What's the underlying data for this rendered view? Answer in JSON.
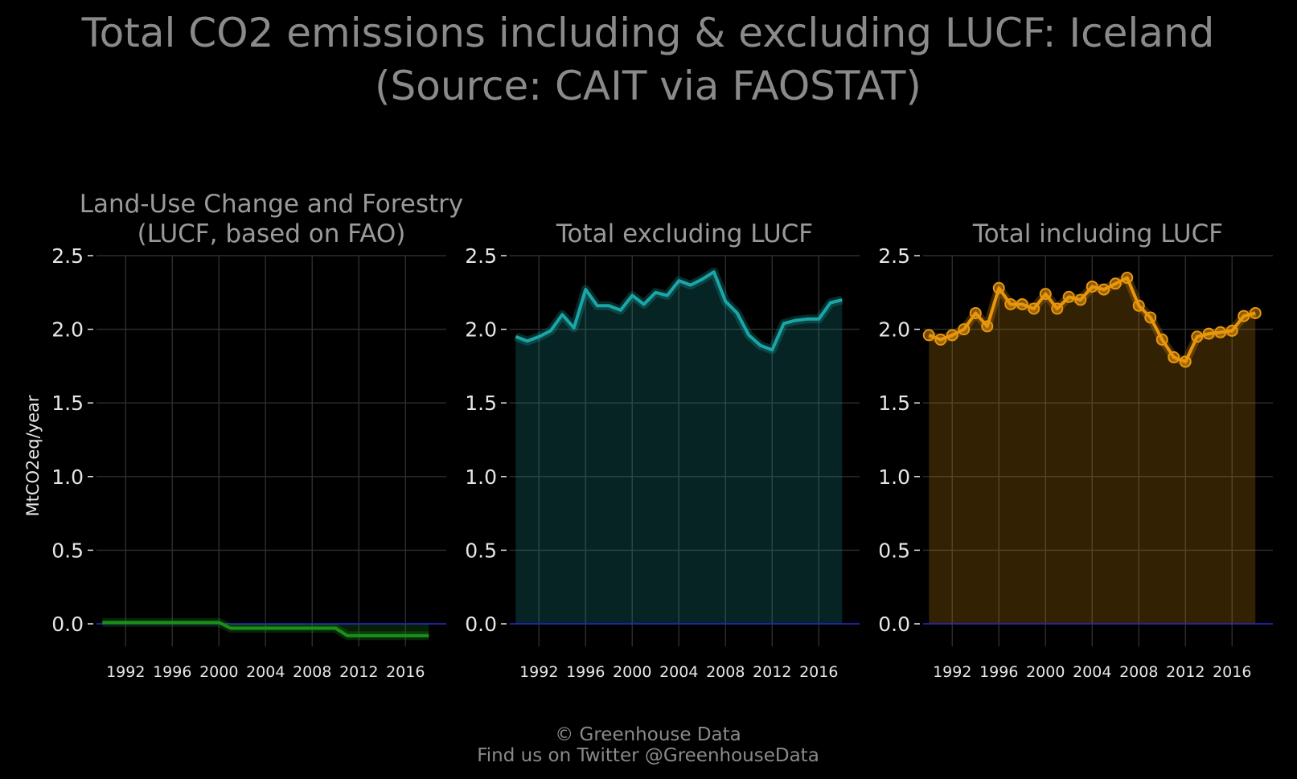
{
  "figure": {
    "title_line1": "Total CO2 emissions including & excluding LUCF: Iceland",
    "title_line2": "(Source: CAIT via FAOSTAT)",
    "credit_line1": "© Greenhouse Data",
    "credit_line2": "Find us on Twitter @GreenhouseData",
    "ylabel": "MtCO2eq/year",
    "background": "#000000",
    "grid_color": "#2e2e2e",
    "zero_line_color": "#2222cc"
  },
  "chart_data": [
    {
      "type": "area",
      "title_lines": [
        "Land-Use Change and Forestry",
        "(LUCF, based on FAO)"
      ],
      "color": "#1a8f1a",
      "marker": "none",
      "step": true,
      "ylim": [
        -0.2,
        2.5
      ],
      "xlim": [
        1989.5,
        2019.5
      ],
      "yticks": [
        "0.0",
        "0.5",
        "1.0",
        "1.5",
        "2.0",
        "2.5"
      ],
      "xticks": [
        "1992",
        "1996",
        "2000",
        "2004",
        "2008",
        "2012",
        "2016"
      ],
      "grid": true,
      "x": [
        1990,
        1991,
        1992,
        1993,
        1994,
        1995,
        1996,
        1997,
        1998,
        1999,
        2000,
        2001,
        2002,
        2003,
        2004,
        2005,
        2006,
        2007,
        2008,
        2009,
        2010,
        2011,
        2012,
        2013,
        2014,
        2015,
        2016,
        2017,
        2018
      ],
      "values": [
        0.01,
        0.01,
        0.01,
        0.01,
        0.01,
        0.01,
        0.01,
        0.01,
        0.01,
        0.01,
        0.01,
        -0.03,
        -0.03,
        -0.03,
        -0.03,
        -0.03,
        -0.03,
        -0.03,
        -0.03,
        -0.03,
        -0.03,
        -0.08,
        -0.08,
        -0.08,
        -0.08,
        -0.08,
        -0.08,
        -0.08,
        -0.08
      ]
    },
    {
      "type": "area",
      "title_lines": [
        "Total excluding LUCF"
      ],
      "color": "#1aa6a6",
      "marker": "none",
      "step": false,
      "ylim": [
        -0.2,
        2.5
      ],
      "xlim": [
        1989.5,
        2019.5
      ],
      "yticks": [
        "0.0",
        "0.5",
        "1.0",
        "1.5",
        "2.0",
        "2.5"
      ],
      "xticks": [
        "1992",
        "1996",
        "2000",
        "2004",
        "2008",
        "2012",
        "2016"
      ],
      "grid": true,
      "x": [
        1990,
        1991,
        1992,
        1993,
        1994,
        1995,
        1996,
        1997,
        1998,
        1999,
        2000,
        2001,
        2002,
        2003,
        2004,
        2005,
        2006,
        2007,
        2008,
        2009,
        2010,
        2011,
        2012,
        2013,
        2014,
        2015,
        2016,
        2017,
        2018
      ],
      "values": [
        1.95,
        1.92,
        1.95,
        1.99,
        2.1,
        2.01,
        2.27,
        2.16,
        2.16,
        2.13,
        2.23,
        2.17,
        2.25,
        2.23,
        2.33,
        2.3,
        2.34,
        2.39,
        2.19,
        2.11,
        1.96,
        1.89,
        1.86,
        2.04,
        2.06,
        2.07,
        2.07,
        2.18,
        2.2
      ]
    },
    {
      "type": "area",
      "title_lines": [
        "Total including LUCF"
      ],
      "color": "#e8960c",
      "marker": "circle",
      "step": false,
      "ylim": [
        -0.2,
        2.5
      ],
      "xlim": [
        1989.5,
        2019.5
      ],
      "yticks": [
        "0.0",
        "0.5",
        "1.0",
        "1.5",
        "2.0",
        "2.5"
      ],
      "xticks": [
        "1992",
        "1996",
        "2000",
        "2004",
        "2008",
        "2012",
        "2016"
      ],
      "grid": true,
      "x": [
        1990,
        1991,
        1992,
        1993,
        1994,
        1995,
        1996,
        1997,
        1998,
        1999,
        2000,
        2001,
        2002,
        2003,
        2004,
        2005,
        2006,
        2007,
        2008,
        2009,
        2010,
        2011,
        2012,
        2013,
        2014,
        2015,
        2016,
        2017,
        2018
      ],
      "values": [
        1.96,
        1.93,
        1.96,
        2.0,
        2.11,
        2.02,
        2.28,
        2.17,
        2.17,
        2.14,
        2.24,
        2.14,
        2.22,
        2.2,
        2.29,
        2.27,
        2.31,
        2.35,
        2.16,
        2.08,
        1.93,
        1.81,
        1.78,
        1.95,
        1.97,
        1.98,
        1.99,
        2.09,
        2.11
      ]
    }
  ]
}
